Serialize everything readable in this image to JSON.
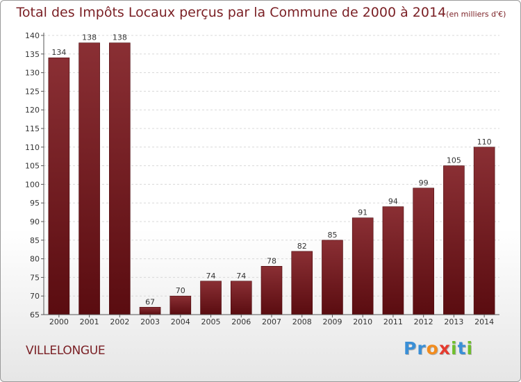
{
  "title": "Total des Impôts Locaux perçus par la Commune de 2000 à 2014",
  "title_unit": "(en milliers d'€)",
  "commune": "VILLELONGUE",
  "logo": {
    "letters": [
      {
        "char": "P",
        "color": "#3a8fd6"
      },
      {
        "char": "r",
        "color": "#3a8fd6"
      },
      {
        "char": "o",
        "color": "#f28c1e"
      },
      {
        "char": "x",
        "color": "#e53b2f"
      },
      {
        "char": "i",
        "color": "#6fbf2c"
      },
      {
        "char": "t",
        "color": "#3a8fd6"
      },
      {
        "char": "i",
        "color": "#6fbf2c"
      }
    ]
  },
  "chart_data": {
    "type": "bar",
    "title": "Total des Impôts Locaux perçus par la Commune de 2000 à 2014",
    "xlabel": "",
    "ylabel": "",
    "categories": [
      "2000",
      "2001",
      "2002",
      "2003",
      "2004",
      "2005",
      "2006",
      "2007",
      "2008",
      "2009",
      "2010",
      "2011",
      "2012",
      "2013",
      "2014"
    ],
    "values": [
      134,
      138,
      138,
      67,
      70,
      74,
      74,
      78,
      82,
      85,
      91,
      94,
      99,
      105,
      110
    ],
    "ylim": [
      65,
      140
    ],
    "yticks": [
      65,
      70,
      75,
      80,
      85,
      90,
      95,
      100,
      105,
      110,
      115,
      120,
      125,
      130,
      135,
      140
    ],
    "grid": true,
    "bar_color": "#6e1a1f"
  }
}
